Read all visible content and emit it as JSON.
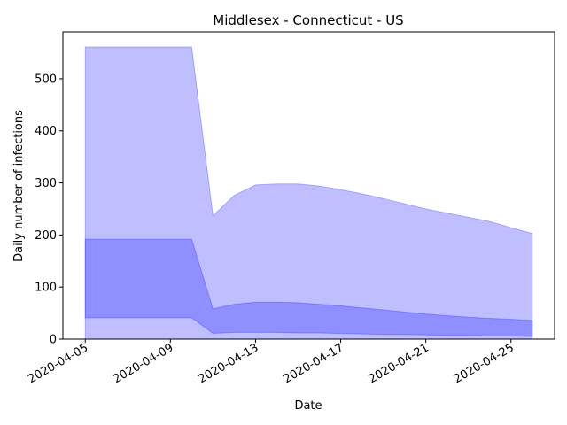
{
  "chart_data": {
    "type": "area",
    "title": "Middlesex - Connecticut - US",
    "xlabel": "Date",
    "ylabel": "Daily number of infections",
    "x": [
      "2020-04-05",
      "2020-04-06",
      "2020-04-07",
      "2020-04-08",
      "2020-04-09",
      "2020-04-10",
      "2020-04-11",
      "2020-04-12",
      "2020-04-13",
      "2020-04-14",
      "2020-04-15",
      "2020-04-16",
      "2020-04-17",
      "2020-04-18",
      "2020-04-19",
      "2020-04-20",
      "2020-04-21",
      "2020-04-22",
      "2020-04-23",
      "2020-04-24",
      "2020-04-25",
      "2020-04-26"
    ],
    "x_ticks": [
      "2020-04-05",
      "2020-04-09",
      "2020-04-13",
      "2020-04-17",
      "2020-04-21",
      "2020-04-25"
    ],
    "xlim": [
      "2020-04-05",
      "2020-04-26"
    ],
    "y_ticks": [
      0,
      100,
      200,
      300,
      400,
      500
    ],
    "ylim": [
      0,
      590
    ],
    "color": "#0000ff",
    "bands": [
      {
        "lower": [
          0,
          0,
          0,
          0,
          0,
          0,
          0,
          0,
          0,
          0,
          0,
          0,
          0,
          0,
          0,
          0,
          0,
          0,
          0,
          0,
          0,
          0
        ],
        "upper": [
          561,
          561,
          561,
          561,
          561,
          561,
          237,
          276,
          296,
          298,
          298,
          294,
          287,
          279,
          270,
          260,
          250,
          242,
          234,
          226,
          214,
          203
        ]
      },
      {
        "lower": [
          41,
          41,
          41,
          41,
          41,
          41,
          11,
          13,
          13,
          13,
          12,
          12,
          11,
          10,
          9,
          9,
          8,
          7,
          7,
          6,
          6,
          5
        ],
        "upper": [
          192,
          192,
          192,
          192,
          192,
          192,
          58,
          67,
          71,
          71,
          70,
          67,
          64,
          60,
          56,
          52,
          48,
          45,
          42,
          40,
          38,
          36
        ]
      }
    ]
  }
}
